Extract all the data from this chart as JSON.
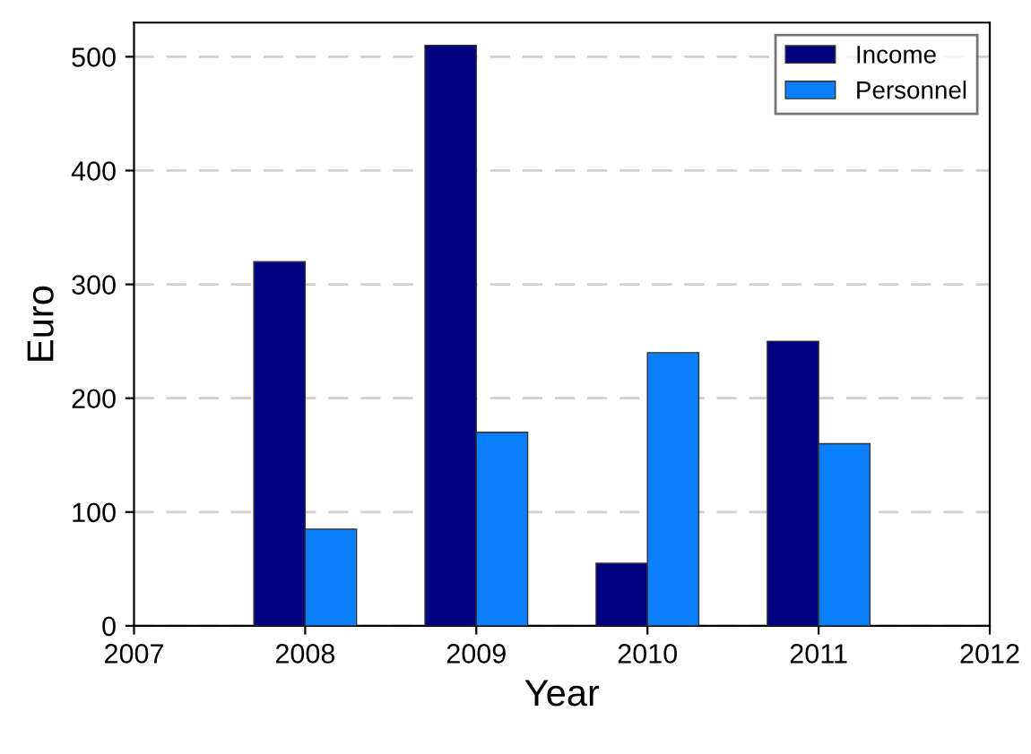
{
  "chart_data": {
    "type": "bar",
    "xlabel": "Year",
    "ylabel": "Euro",
    "x": [
      2008,
      2009,
      2010,
      2011
    ],
    "series": [
      {
        "name": "Income",
        "color": "#000080",
        "values": [
          320,
          510,
          55,
          250
        ]
      },
      {
        "name": "Personnel",
        "color": "#0a80ff",
        "values": [
          85,
          170,
          240,
          160
        ]
      }
    ],
    "xlim": [
      2007,
      2012
    ],
    "xticks": [
      2007,
      2008,
      2009,
      2010,
      2011,
      2012
    ],
    "ylim": [
      0,
      530
    ],
    "yticks": [
      0,
      100,
      200,
      300,
      400,
      500
    ],
    "grid": "y",
    "legend": "top right"
  }
}
